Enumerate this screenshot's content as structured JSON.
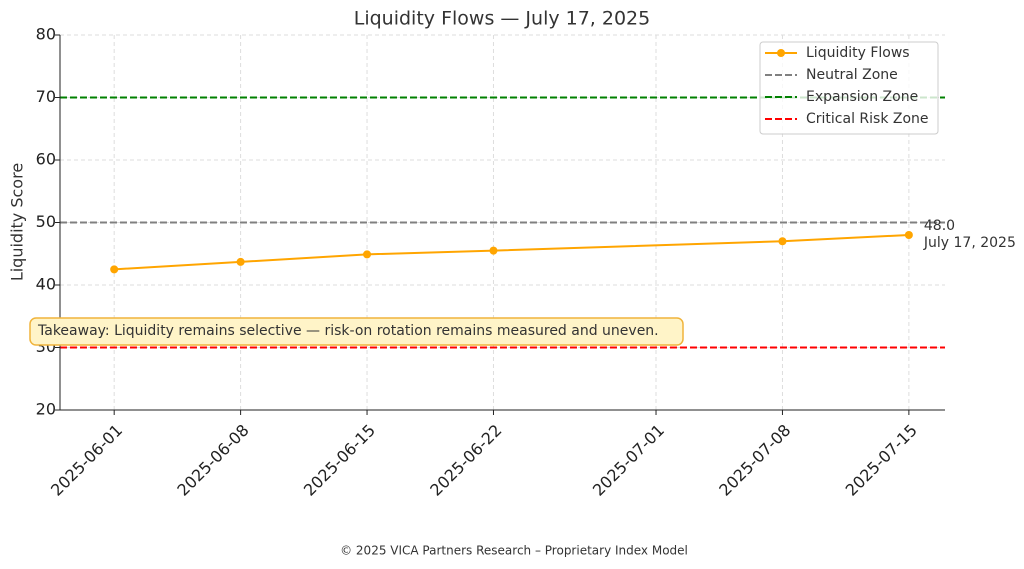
{
  "chart_data": {
    "type": "line",
    "title": "Liquidity Flows — July 17, 2025",
    "ylabel": "Liquidity Score",
    "x": [
      "2025-06-01",
      "2025-06-08",
      "2025-06-15",
      "2025-06-22",
      "2025-07-08",
      "2025-07-15"
    ],
    "series": [
      {
        "name": "Liquidity Flows",
        "color": "#ffa500",
        "values": [
          42.5,
          43.7,
          44.9,
          45.5,
          47.0,
          48.0
        ],
        "value_labels": [
          null,
          null,
          null,
          null,
          null,
          "48.0"
        ]
      }
    ],
    "hlines": [
      {
        "name": "Neutral Zone",
        "color": "#808080",
        "value": 50
      },
      {
        "name": "Expansion Zone",
        "color": "#008000",
        "value": 70
      },
      {
        "name": "Critical Risk Zone",
        "color": "#ff0000",
        "value": 30
      }
    ],
    "xlim": [
      "2025-05-29",
      "2025-07-17"
    ],
    "xticks": [
      "2025-06-01",
      "2025-06-08",
      "2025-06-15",
      "2025-06-22",
      "2025-07-01",
      "2025-07-08",
      "2025-07-15"
    ],
    "ylim": [
      20,
      80
    ],
    "yticks": [
      20,
      30,
      40,
      50,
      60,
      70,
      80
    ],
    "grid": true,
    "legend": "upper right",
    "annotations": [
      "July 17, 2025",
      "Takeaway: Liquidity remains selective — risk-on rotation remains measured and uneven."
    ],
    "footer": "© 2025 VICA Partners Research – Proprietary Index Model"
  }
}
